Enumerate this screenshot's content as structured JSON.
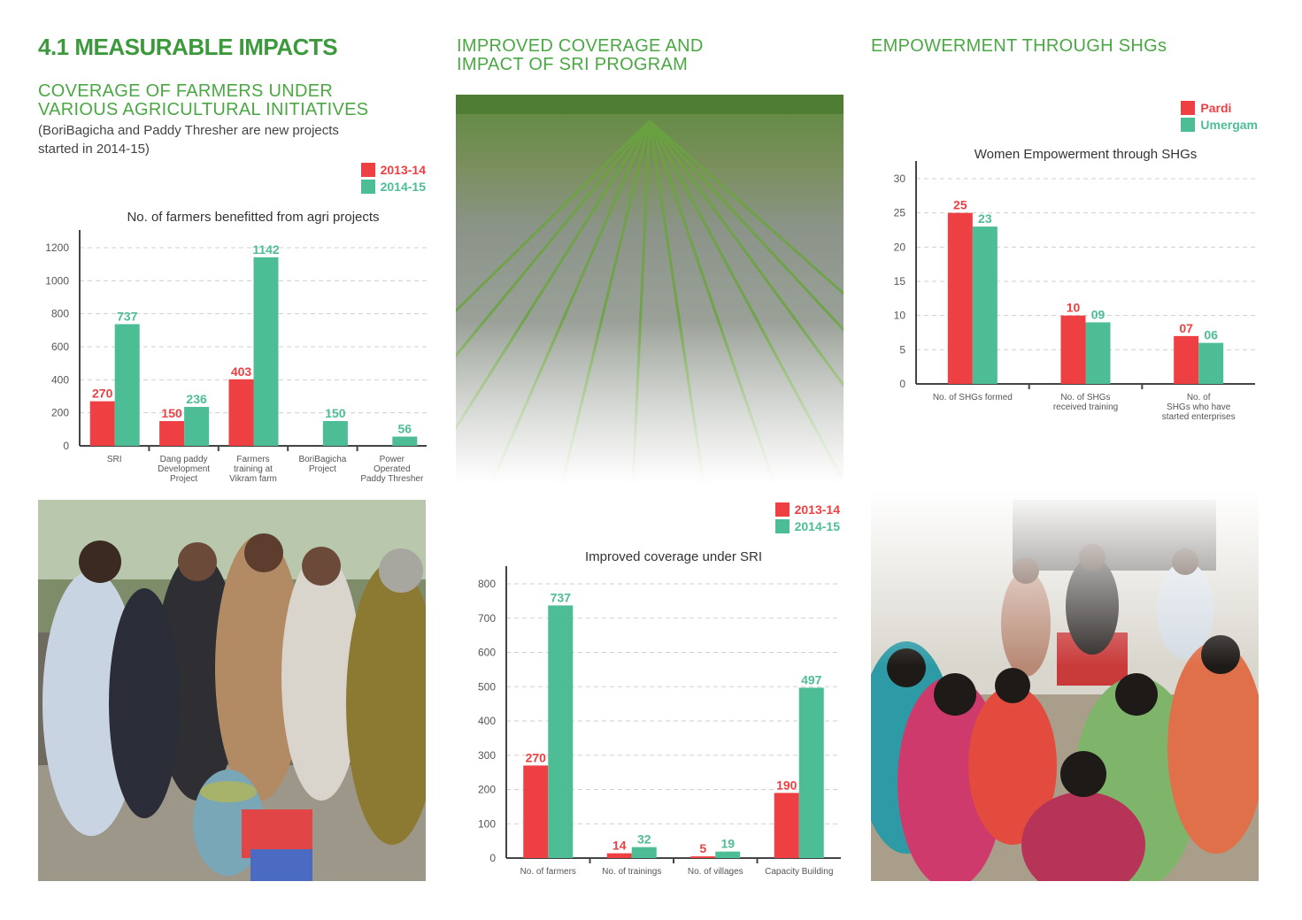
{
  "colors": {
    "red": "#ee3f42",
    "green": "#4dbd96",
    "title_green": "#3c9a3c"
  },
  "page": {
    "main_title": "4.1 MEASURABLE IMPACTS",
    "coverage_title_1": "COVERAGE OF FARMERS UNDER",
    "coverage_title_2": "VARIOUS AGRICULTURAL INITIATIVES",
    "coverage_note_1": "(BoriBagicha and Paddy Thresher are new projects",
    "coverage_note_2": "started in 2014-15)",
    "sri_title_1": "IMPROVED COVERAGE AND",
    "sri_title_2": "IMPACT OF SRI PROGRAM",
    "shg_title": "EMPOWERMENT THROUGH SHGs"
  },
  "legend_years": {
    "a": "2013-14",
    "b": "2014-15"
  },
  "legend_shg": {
    "a": "Pardi",
    "b": "Umergam"
  },
  "chart_data": [
    {
      "type": "bar",
      "title": "No. of farmers benefitted from agri projects",
      "categories": [
        [
          "SRI"
        ],
        [
          "Dang paddy",
          "Development",
          "Project"
        ],
        [
          "Farmers",
          "training at",
          "Vikram farm"
        ],
        [
          "BoriBagicha",
          "Project"
        ],
        [
          "Power",
          "Operated",
          "Paddy Thresher"
        ]
      ],
      "series": [
        {
          "name": "2013-14",
          "values": [
            270,
            150,
            403,
            null,
            null
          ],
          "labels": [
            "270",
            "150",
            "403",
            "",
            ""
          ]
        },
        {
          "name": "2014-15",
          "values": [
            737,
            236,
            1142,
            150,
            56
          ],
          "labels": [
            "737",
            "236",
            "1142",
            "150",
            "56"
          ]
        }
      ],
      "yticks": [
        "0",
        "200",
        "400",
        "600",
        "800",
        "1000",
        "1200"
      ],
      "ylim": [
        0,
        1200
      ],
      "grid": true
    },
    {
      "type": "bar",
      "title": "Improved coverage under SRI",
      "categories": [
        [
          "No. of farmers"
        ],
        [
          "No. of trainings"
        ],
        [
          "No. of villages"
        ],
        [
          "Capacity Building"
        ]
      ],
      "series": [
        {
          "name": "2013-14",
          "values": [
            270,
            14,
            5,
            190
          ],
          "labels": [
            "270",
            "14",
            "5",
            "190"
          ]
        },
        {
          "name": "2014-15",
          "values": [
            737,
            32,
            19,
            497
          ],
          "labels": [
            "737",
            "32",
            "19",
            "497"
          ]
        }
      ],
      "yticks": [
        "0",
        "100",
        "200",
        "300",
        "400",
        "500",
        "600",
        "700",
        "800"
      ],
      "ylim": [
        0,
        800
      ],
      "grid": true
    },
    {
      "type": "bar",
      "title": "Women Empowerment through SHGs",
      "categories": [
        [
          "No. of SHGs formed"
        ],
        [
          "No. of SHGs",
          "received training"
        ],
        [
          "No. of",
          "SHGs who have",
          "started enterprises"
        ]
      ],
      "series": [
        {
          "name": "Pardi",
          "values": [
            25,
            10,
            7
          ],
          "labels": [
            "25",
            "10",
            "07"
          ]
        },
        {
          "name": "Umergam",
          "values": [
            23,
            9,
            6
          ],
          "labels": [
            "23",
            "09",
            "06"
          ]
        }
      ],
      "yticks": [
        "0",
        "5",
        "10",
        "15",
        "20",
        "25",
        "30"
      ],
      "ylim": [
        0,
        30
      ],
      "grid": true
    }
  ]
}
